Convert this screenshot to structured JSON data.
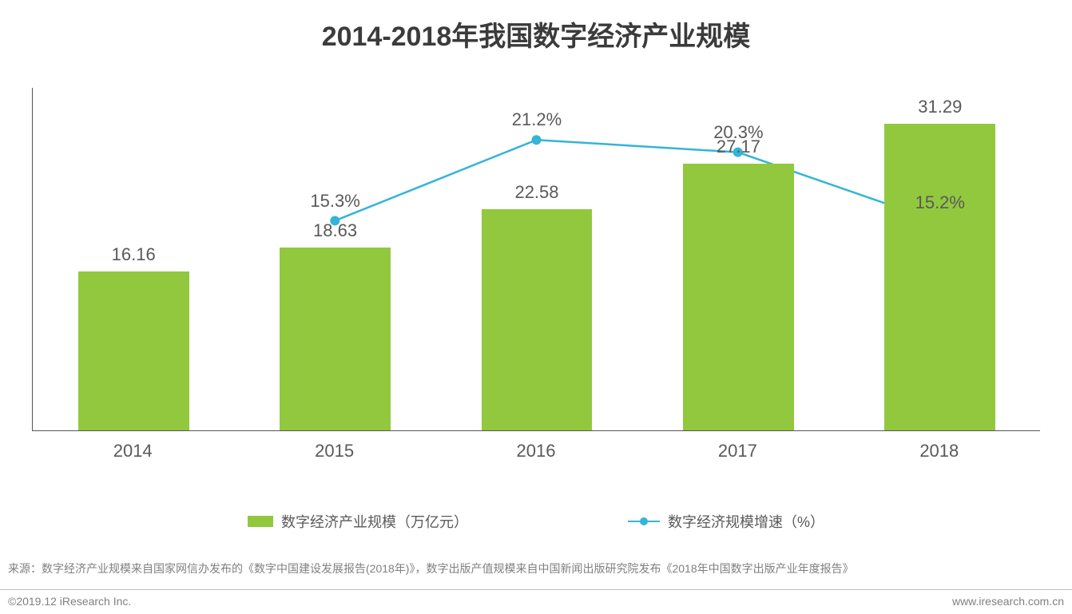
{
  "title": {
    "text": "2014-2018年我国数字经济产业规模",
    "fontsize": 34,
    "color": "#3b3b3b"
  },
  "chart": {
    "type": "bar+line",
    "background_color": "#ffffff",
    "axis_color": "#555555",
    "categories": [
      "2014",
      "2015",
      "2016",
      "2017",
      "2018"
    ],
    "bars": {
      "values": [
        16.16,
        18.63,
        22.58,
        27.17,
        31.29
      ],
      "labels": [
        "16.16",
        "18.63",
        "22.58",
        "27.17",
        "31.29"
      ],
      "color": "#92c83e",
      "ymin": 0,
      "ymax": 35,
      "bar_width_ratio": 0.55,
      "label_fontsize": 22,
      "label_color": "#595959"
    },
    "line": {
      "values": [
        null,
        15.3,
        21.2,
        20.3,
        15.2
      ],
      "labels": [
        "",
        "15.3%",
        "21.2%",
        "20.3%",
        "15.2%"
      ],
      "color": "#34b4d6",
      "ymin": 0,
      "ymax": 25,
      "line_width": 2.5,
      "marker_radius": 6,
      "marker_fill": "#34b4d6",
      "label_fontsize": 22,
      "label_color": "#595959"
    },
    "xaxis_label_fontsize": 22,
    "xaxis_label_color": "#595959"
  },
  "legend": {
    "bar_label": "数字经济产业规模（万亿元）",
    "line_label": "数字经济规模增速（%）",
    "fontsize": 18,
    "text_color": "#595959"
  },
  "source": {
    "text": "来源：数字经济产业规模来自国家网信办发布的《数字中国建设发展报告(2018年)》，数字出版产值规模来自中国新闻出版研究院发布《2018年中国数字出版产业年度报告》",
    "fontsize": 14,
    "color": "#808080"
  },
  "footer": {
    "left": "©2019.12 iResearch Inc.",
    "right": "www.iresearch.com.cn",
    "fontsize": 14,
    "color": "#808080",
    "border_color": "#bfbfbf"
  }
}
